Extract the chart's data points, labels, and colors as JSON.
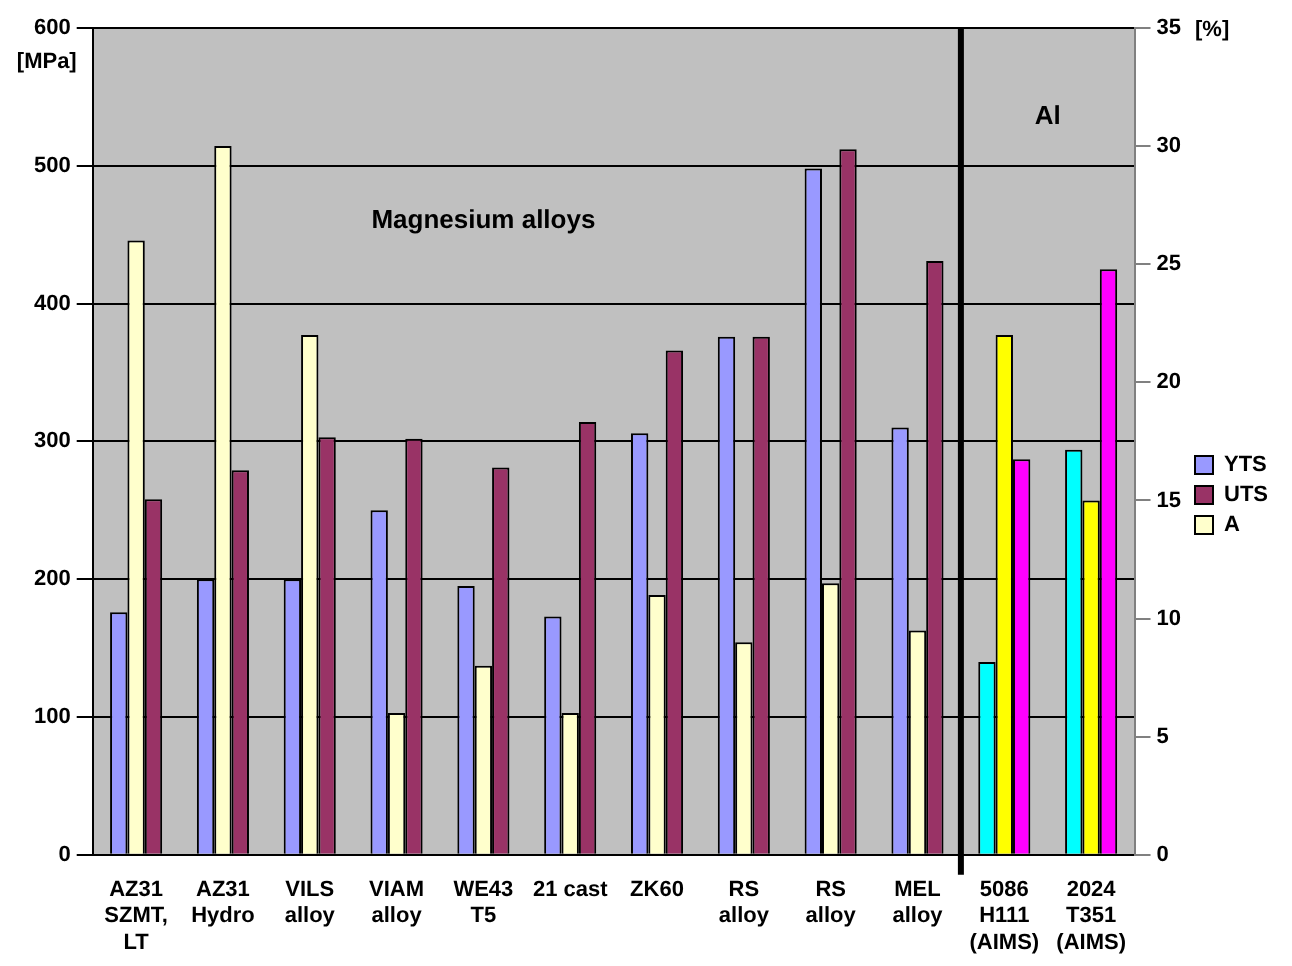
{
  "chart_data": {
    "type": "bar",
    "categories": [
      "AZ31 SZMT, LT",
      "AZ31 Hydro",
      "VILS alloy",
      "VIAM alloy",
      "WE43 T5",
      "21 cast",
      "ZK60",
      "RS alloy",
      "RS alloy",
      "MEL alloy",
      "5086 H111 (AIMS)",
      "2024 T351 (AIMS)"
    ],
    "series": [
      {
        "name": "YTS",
        "color": "#9999ff",
        "colors": [
          "#9999ff",
          "#9999ff",
          "#9999ff",
          "#9999ff",
          "#9999ff",
          "#9999ff",
          "#9999ff",
          "#9999ff",
          "#9999ff",
          "#9999ff",
          "#00ffff",
          "#00ffff"
        ],
        "values": [
          176,
          200,
          200,
          250,
          195,
          173,
          306,
          376,
          498,
          310,
          140,
          294
        ]
      },
      {
        "name": "UTS",
        "color": "#993366",
        "colors": [
          "#993366",
          "#993366",
          "#993366",
          "#993366",
          "#993366",
          "#993366",
          "#993366",
          "#993366",
          "#993366",
          "#993366",
          "#ff00ff",
          "#ff00ff"
        ],
        "values": [
          258,
          279,
          303,
          302,
          281,
          314,
          366,
          376,
          512,
          431,
          287,
          425
        ]
      },
      {
        "name": "A",
        "color": "#ffffcc",
        "colors": [
          "#ffffcc",
          "#ffffcc",
          "#ffffcc",
          "#ffffcc",
          "#ffffcc",
          "#ffffcc",
          "#ffffcc",
          "#ffffcc",
          "#ffffcc",
          "#ffffcc",
          "#ffff00",
          "#ffff00"
        ],
        "axis": "y2",
        "values": [
          26,
          30,
          22,
          6,
          8,
          6,
          11,
          9,
          11.5,
          9.5,
          22,
          15
        ]
      }
    ],
    "ylabel": "[MPa]",
    "y2label": "[%]",
    "ylim": [
      0,
      600
    ],
    "yticks": [
      0,
      100,
      200,
      300,
      400,
      500,
      600
    ],
    "y2lim": [
      0,
      35
    ],
    "y2ticks": [
      0,
      5,
      10,
      15,
      20,
      25,
      30,
      35
    ],
    "annotations": [
      "Magnesium alloys",
      "Al"
    ],
    "ref_lines": [
      {
        "axis": "x",
        "value": "5086 H111 (AIMS)",
        "color": "#000000"
      }
    ],
    "grid": "y",
    "legend": "right"
  }
}
